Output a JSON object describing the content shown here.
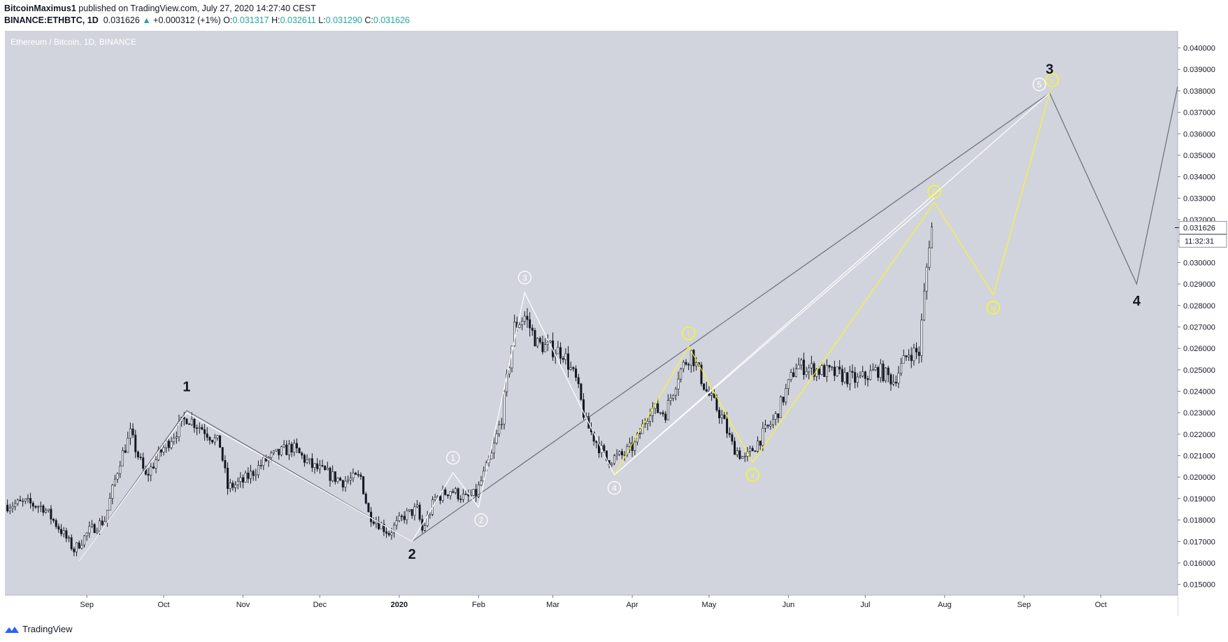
{
  "header": {
    "publisher": "BitcoinMaximus1",
    "published_text": "published on TradingView.com, July 27, 2020 14:27:40 CEST",
    "symbol": "BINANCE:ETHBTC, 1D",
    "last": "0.031626",
    "change_arrow": "▲",
    "change": "+0.000312 (+1%)",
    "o_label": "O:",
    "o_value": "0.031317",
    "h_label": "H:",
    "h_value": "0.032611",
    "l_label": "L:",
    "l_value": "0.031290",
    "c_label": "C:",
    "c_value": "0.031626"
  },
  "footer": {
    "brand": "TradingView",
    "logo_icon": "tradingview-logo-icon"
  },
  "colors": {
    "plot_bg": "#d1d4dc",
    "candle": "#131722",
    "white_wave": "#ffffff",
    "yellow_wave": "#ffff00",
    "major_wave": "#6a6d78",
    "price_tag": "#ffffff",
    "teal": "#26a69a"
  },
  "chart_data": {
    "type": "candlestick",
    "title": "Ethereum / Bitcoin, 1D, BINANCE",
    "xlabel": "",
    "ylabel": "",
    "ylim": [
      0.0145,
      0.0408
    ],
    "xlim": [
      "2019-07-31",
      "2020-10-31"
    ],
    "grid": false,
    "y_ticks": [
      "0.015000",
      "0.016000",
      "0.017000",
      "0.018000",
      "0.019000",
      "0.020000",
      "0.021000",
      "0.022000",
      "0.023000",
      "0.024000",
      "0.025000",
      "0.026000",
      "0.027000",
      "0.028000",
      "0.029000",
      "0.030000",
      "0.031000",
      "0.032000",
      "0.033000",
      "0.034000",
      "0.035000",
      "0.036000",
      "0.037000",
      "0.038000",
      "0.039000",
      "0.040000"
    ],
    "x_ticks": [
      {
        "label": "Sep",
        "date": "2019-09-01"
      },
      {
        "label": "Oct",
        "date": "2019-10-01"
      },
      {
        "label": "Nov",
        "date": "2019-11-01"
      },
      {
        "label": "Dec",
        "date": "2019-12-01"
      },
      {
        "label": "2020",
        "date": "2020-01-01"
      },
      {
        "label": "Feb",
        "date": "2020-02-01"
      },
      {
        "label": "Mar",
        "date": "2020-03-01"
      },
      {
        "label": "Apr",
        "date": "2020-04-01"
      },
      {
        "label": "May",
        "date": "2020-05-01"
      },
      {
        "label": "Jun",
        "date": "2020-06-01"
      },
      {
        "label": "Jul",
        "date": "2020-07-01"
      },
      {
        "label": "Aug",
        "date": "2020-08-01"
      },
      {
        "label": "Sep",
        "date": "2020-09-01"
      },
      {
        "label": "Oct",
        "date": "2020-10-01"
      }
    ],
    "price_anchors": [
      [
        "2019-08-01",
        0.0187
      ],
      [
        "2019-08-08",
        0.0188
      ],
      [
        "2019-08-15",
        0.0186
      ],
      [
        "2019-08-22",
        0.0175
      ],
      [
        "2019-08-27",
        0.0166
      ],
      [
        "2019-09-02",
        0.0175
      ],
      [
        "2019-09-08",
        0.018
      ],
      [
        "2019-09-14",
        0.0208
      ],
      [
        "2019-09-18",
        0.022
      ],
      [
        "2019-09-24",
        0.02
      ],
      [
        "2019-09-30",
        0.0212
      ],
      [
        "2019-10-10",
        0.0228
      ],
      [
        "2019-10-17",
        0.0222
      ],
      [
        "2019-10-23",
        0.0215
      ],
      [
        "2019-10-26",
        0.0195
      ],
      [
        "2019-11-01",
        0.0198
      ],
      [
        "2019-11-10",
        0.0208
      ],
      [
        "2019-11-20",
        0.0214
      ],
      [
        "2019-11-28",
        0.0205
      ],
      [
        "2019-12-10",
        0.0198
      ],
      [
        "2019-12-17",
        0.02
      ],
      [
        "2019-12-20",
        0.0183
      ],
      [
        "2019-12-28",
        0.0174
      ],
      [
        "2020-01-03",
        0.0182
      ],
      [
        "2020-01-08",
        0.0185
      ],
      [
        "2020-01-10",
        0.0175
      ],
      [
        "2020-01-15",
        0.019
      ],
      [
        "2020-01-21",
        0.0194
      ],
      [
        "2020-01-27",
        0.019
      ],
      [
        "2020-01-31",
        0.0192
      ],
      [
        "2020-02-06",
        0.021
      ],
      [
        "2020-02-10",
        0.0228
      ],
      [
        "2020-02-15",
        0.027
      ],
      [
        "2020-02-19",
        0.0275
      ],
      [
        "2020-02-24",
        0.0262
      ],
      [
        "2020-03-05",
        0.0258
      ],
      [
        "2020-03-10",
        0.0245
      ],
      [
        "2020-03-14",
        0.0225
      ],
      [
        "2020-03-22",
        0.0208
      ],
      [
        "2020-03-28",
        0.021
      ],
      [
        "2020-04-02",
        0.0215
      ],
      [
        "2020-04-08",
        0.0232
      ],
      [
        "2020-04-14",
        0.023
      ],
      [
        "2020-04-19",
        0.0248
      ],
      [
        "2020-04-24",
        0.0258
      ],
      [
        "2020-04-30",
        0.024
      ],
      [
        "2020-05-06",
        0.0228
      ],
      [
        "2020-05-10",
        0.0215
      ],
      [
        "2020-05-15",
        0.0208
      ],
      [
        "2020-05-21",
        0.0218
      ],
      [
        "2020-05-27",
        0.0228
      ],
      [
        "2020-05-31",
        0.024
      ],
      [
        "2020-06-04",
        0.0252
      ],
      [
        "2020-06-12",
        0.025
      ],
      [
        "2020-06-20",
        0.0248
      ],
      [
        "2020-06-28",
        0.0245
      ],
      [
        "2020-07-06",
        0.025
      ],
      [
        "2020-07-12",
        0.0245
      ],
      [
        "2020-07-18",
        0.0258
      ],
      [
        "2020-07-22",
        0.0258
      ],
      [
        "2020-07-24",
        0.0285
      ],
      [
        "2020-07-26",
        0.031
      ],
      [
        "2020-07-27",
        0.031626
      ]
    ],
    "last_price_label": "0.031626",
    "countdown_label": "11:32:31",
    "white_wave_points": [
      [
        "2019-08-29",
        0.0161
      ],
      [
        "2019-10-10",
        0.023
      ],
      [
        "2020-01-06",
        0.017
      ],
      [
        "2020-01-22",
        0.0202
      ],
      [
        "2020-02-01",
        0.0186
      ],
      [
        "2020-02-19",
        0.0286
      ],
      [
        "2020-03-25",
        0.0201
      ],
      [
        "2020-09-11",
        0.0379
      ]
    ],
    "white_channel": [
      [
        "2020-03-25",
        0.0201
      ],
      [
        "2020-07-28",
        0.033
      ]
    ],
    "yellow_wave_points": [
      [
        "2020-03-25",
        0.0201
      ],
      [
        "2020-04-23",
        0.0261
      ],
      [
        "2020-05-18",
        0.0207
      ],
      [
        "2020-07-28",
        0.0328
      ],
      [
        "2020-08-20",
        0.0285
      ],
      [
        "2020-09-11",
        0.0379
      ]
    ],
    "major_wave_points": [
      [
        "2019-08-29",
        0.0161
      ],
      [
        "2019-10-10",
        0.0231
      ],
      [
        "2020-01-06",
        0.017
      ],
      [
        "2020-09-11",
        0.0379
      ],
      [
        "2020-10-15",
        0.029
      ],
      [
        "2020-10-31",
        0.0382
      ]
    ],
    "wave_labels_white": [
      {
        "text": "1",
        "date": "2020-01-22",
        "price": 0.0209
      },
      {
        "text": "2",
        "date": "2020-02-02",
        "price": 0.018
      },
      {
        "text": "3",
        "date": "2020-02-19",
        "price": 0.0293
      },
      {
        "text": "4",
        "date": "2020-03-25",
        "price": 0.0195
      },
      {
        "text": "5",
        "date": "2020-09-07",
        "price": 0.0383
      }
    ],
    "wave_labels_yellow": [
      {
        "text": "i",
        "date": "2020-04-23",
        "price": 0.0267
      },
      {
        "text": "ii",
        "date": "2020-05-18",
        "price": 0.0201
      },
      {
        "text": "iii",
        "date": "2020-07-28",
        "price": 0.0333
      },
      {
        "text": "iv",
        "date": "2020-08-20",
        "price": 0.0279
      },
      {
        "text": "v",
        "date": "2020-09-12",
        "price": 0.0385
      }
    ],
    "wave_labels_major": [
      {
        "text": "1",
        "date": "2019-10-10",
        "price": 0.024
      },
      {
        "text": "2",
        "date": "2020-01-06",
        "price": 0.0162
      },
      {
        "text": "3",
        "date": "2020-09-11",
        "price": 0.0388
      },
      {
        "text": "4",
        "date": "2020-10-15",
        "price": 0.028
      }
    ]
  }
}
